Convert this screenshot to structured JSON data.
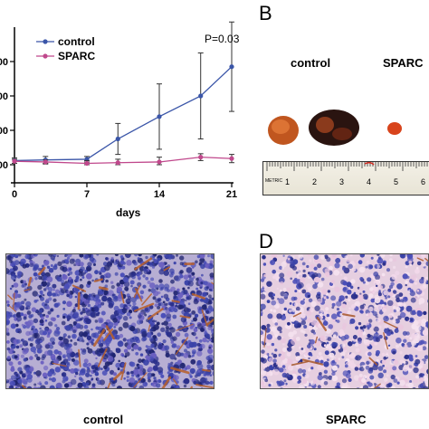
{
  "panels": {
    "b_letter": "B",
    "d_letter": "D",
    "b_label_control": "control",
    "b_label_sparc": "SPARC",
    "c_caption": "control",
    "d_caption": "SPARC",
    "ruler_metric": "METRIC",
    "ruler_numbers": [
      "1",
      "2",
      "3",
      "4",
      "5",
      "6"
    ]
  },
  "colors": {
    "control": "#3a55a8",
    "sparc": "#c0488c"
  },
  "chart_data": {
    "type": "line",
    "title": "",
    "xlabel": "days",
    "ylabel": "",
    "annotation": "P=0.03",
    "x": [
      0,
      3,
      7,
      10,
      14,
      18,
      21
    ],
    "xticks": [
      "0",
      "7",
      "14",
      "21"
    ],
    "yticks": [
      "00",
      "00",
      "00",
      "00"
    ],
    "ylim": [
      0,
      400
    ],
    "xlim": [
      0,
      21
    ],
    "legend": "top-left",
    "series": [
      {
        "name": "control",
        "color": "#3a55a8",
        "values": [
          12,
          14,
          16,
          75,
          140,
          200,
          285
        ],
        "err": [
          8,
          10,
          8,
          45,
          95,
          125,
          130
        ]
      },
      {
        "name": "SPARC",
        "color": "#c0488c",
        "values": [
          10,
          8,
          4,
          6,
          8,
          22,
          18
        ],
        "err": [
          6,
          6,
          8,
          10,
          14,
          10,
          12
        ]
      }
    ]
  }
}
